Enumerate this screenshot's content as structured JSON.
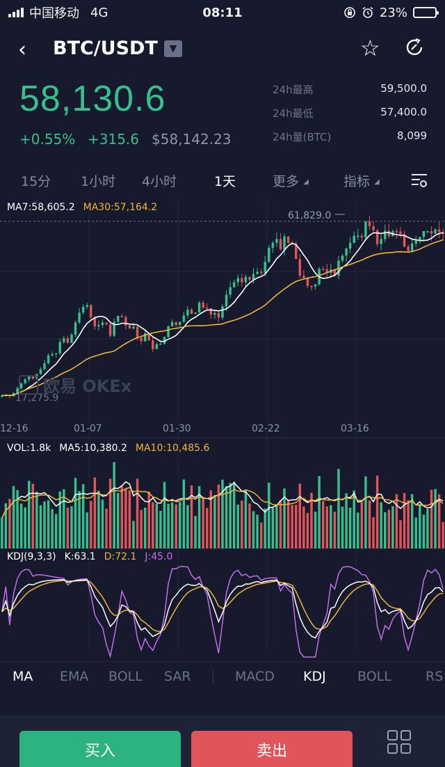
{
  "status_bar": {
    "carrier": "中国移动",
    "network": "4G",
    "time": "08:11",
    "battery": "23%",
    "battery_level": 0.23
  },
  "header": {
    "pair": "BTC/USDT"
  },
  "ticker": {
    "price": "58,130.6",
    "change_pct": "+0.55%",
    "change_abs": "+315.6",
    "usd_price": "$58,142.23",
    "stats": [
      {
        "label": "24h最高",
        "value": "59,500.0"
      },
      {
        "label": "24h最低",
        "value": "57,400.0"
      },
      {
        "label": "24h量(BTC)",
        "value": "8,099"
      }
    ]
  },
  "timeframes": [
    {
      "label": "15分"
    },
    {
      "label": "1小时"
    },
    {
      "label": "4小时"
    },
    {
      "label": "1天"
    },
    {
      "label": "更多"
    },
    {
      "label": "指标"
    }
  ],
  "main_chart": {
    "ma7": "MA7:58,605.2",
    "ma30": "MA30:57,164.2",
    "high_label": "61,829.0",
    "low_label": "17,275.9",
    "watermark": "欧易 OKEx",
    "x_labels": [
      "12-16",
      "01-07",
      "01-30",
      "02-22",
      "03-16"
    ]
  },
  "vol_chart": {
    "vol": "VOL:1.8k",
    "ma5": "MA5:10,380.2",
    "ma10": "MA10:10,485.6"
  },
  "kdj_chart": {
    "name": "KDJ(9,3,3)",
    "k": "K:63.1",
    "d": "D:72.1",
    "j": "J:45.0"
  },
  "indicators_main": [
    "MA",
    "EMA",
    "BOLL",
    "SAR"
  ],
  "indicators_sub": [
    "MACD",
    "KDJ",
    "BOLL",
    "RS"
  ],
  "actions": {
    "buy": "买入",
    "sell": "卖出",
    "more": "更多"
  },
  "colors": {
    "up": "#37c08e",
    "down": "#e0545a",
    "ma_white": "#ffffff",
    "ma_orange": "#f0b53c",
    "j_purple": "#c36df0",
    "bg": "#161a2c"
  },
  "chart_data": {
    "type": "candlestick",
    "x_start": "12-16",
    "x_ticks": [
      "12-16",
      "01-07",
      "01-30",
      "02-22",
      "03-16"
    ],
    "high": 61829.0,
    "low": 17275.9,
    "close": [
      19200,
      19400,
      19100,
      19800,
      21000,
      22200,
      23100,
      23800,
      23300,
      24400,
      25600,
      27000,
      28900,
      29200,
      29400,
      32100,
      33000,
      31900,
      33900,
      36800,
      39200,
      40600,
      41000,
      38100,
      35900,
      36200,
      36800,
      36400,
      33600,
      37000,
      38400,
      38100,
      36100,
      35400,
      35800,
      33100,
      32300,
      34200,
      32500,
      30400,
      31600,
      31700,
      33300,
      35900,
      36900,
      36200,
      37000,
      38500,
      39900,
      38900,
      39200,
      41600,
      40400,
      40200,
      38700,
      39100,
      38000,
      40700,
      43500,
      45300,
      46500,
      47500,
      46500,
      47800,
      47100,
      48500,
      49000,
      48700,
      51400,
      54800,
      56000,
      56900,
      54400,
      57500,
      56000,
      55800,
      52100,
      48100,
      47500,
      45600,
      45500,
      46000,
      49700,
      49600,
      48800,
      49600,
      48100,
      51700,
      52900,
      54600,
      56000,
      57700,
      57700,
      57300,
      61100,
      60000,
      59000,
      55700,
      56900,
      58900,
      57600,
      58800,
      58700,
      58100,
      55100,
      54000,
      55800,
      56600,
      57400,
      58800,
      58800,
      58200,
      59200,
      58600,
      58100
    ]
  }
}
